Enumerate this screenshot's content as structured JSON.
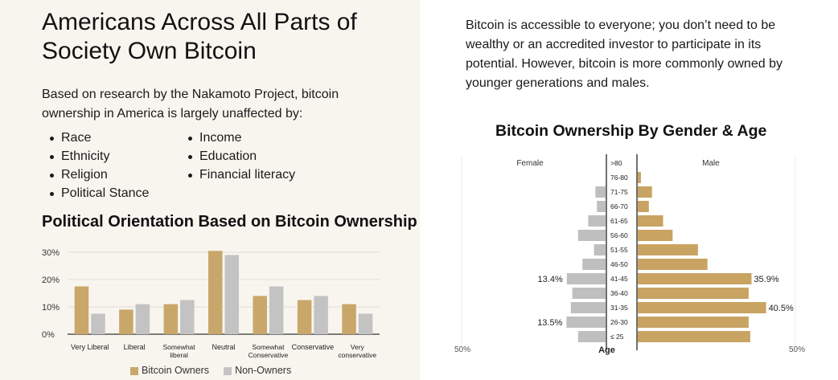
{
  "left": {
    "title": "Americans Across All Parts of Society Own Bitcoin",
    "intro": "Based on research by the Nakamoto Project, bitcoin ownership in America is largely unaffected by:",
    "factors_col1": [
      "Race",
      "Ethnicity",
      "Religion",
      "Political Stance"
    ],
    "factors_col2": [
      "Income",
      "Education",
      "Financial literacy"
    ],
    "chart_title": "Political Orientation Based on Bitcoin Ownership"
  },
  "right": {
    "paragraph": "Bitcoin is accessible to everyone; you don’t need to be wealthy or an accredited investor to participate in its potential. However, bitcoin is more commonly owned by younger generations and males.",
    "chart_title": "Bitcoin Ownership By Gender & Age"
  },
  "colors": {
    "owner": "#c9a76a",
    "owner_dark": "#c8a468",
    "non_owner": "#c3c3c3",
    "male": "#c8a362",
    "female": "#bfbfbf",
    "axis": "#333333",
    "grid": "#e0ddd6"
  },
  "chart_data": [
    {
      "type": "bar",
      "title": "Political Orientation Based on Bitcoin Ownership",
      "categories": [
        "Very Liberal",
        "Liberal",
        "Somewhat liberal",
        "Neutral",
        "Somewhat Conservative",
        "Conservative",
        "Very conservative"
      ],
      "category_lines": [
        [
          "Very Liberal"
        ],
        [
          "Liberal"
        ],
        [
          "Somewhat",
          "liberal"
        ],
        [
          "Neutral"
        ],
        [
          "Somewhat",
          "Conservative"
        ],
        [
          "Conservative"
        ],
        [
          "Very",
          "conservative"
        ]
      ],
      "series": [
        {
          "name": "Bitcoin Owners",
          "values": [
            17.5,
            9,
            11,
            30.5,
            14,
            12.5,
            11
          ]
        },
        {
          "name": "Non-Owners",
          "values": [
            7.5,
            11,
            12.5,
            29,
            17.5,
            14,
            7.5
          ]
        }
      ],
      "yticks": [
        0,
        10,
        20,
        30
      ],
      "ytick_labels": [
        "0%",
        "10%",
        "20%",
        "30%"
      ],
      "ylim": [
        0,
        30
      ],
      "grid": true,
      "legend": "bottom"
    },
    {
      "type": "bar",
      "orientation": "horizontal-pyramid",
      "title": "Bitcoin Ownership By Gender & Age",
      "categories": [
        ">80",
        "76-80",
        "71-75",
        "66-70",
        "61-65",
        "56-60",
        "51-55",
        "46-50",
        "41-45",
        "36-40",
        "31-35",
        "26-30",
        "≤ 25"
      ],
      "center_label": "Age",
      "series": [
        {
          "name": "Female",
          "values": [
            0,
            0,
            3.5,
            3,
            6,
            9.5,
            4,
            8,
            13.4,
            11.5,
            12,
            13.5,
            9.5
          ]
        },
        {
          "name": "Male",
          "values": [
            0,
            1,
            4.5,
            3.5,
            8,
            11,
            19,
            22,
            35.9,
            35,
            40.5,
            35,
            35.5
          ]
        }
      ],
      "data_labels": [
        {
          "series": "Female",
          "category": "41-45",
          "text": "13.4%"
        },
        {
          "series": "Female",
          "category": "26-30",
          "text": "13.5%"
        },
        {
          "series": "Male",
          "category": "41-45",
          "text": "35.9%"
        },
        {
          "series": "Male",
          "category": "31-35",
          "text": "40.5%"
        }
      ],
      "xlim": [
        0,
        50
      ],
      "x_edge_label": "50%",
      "grid": false
    }
  ]
}
